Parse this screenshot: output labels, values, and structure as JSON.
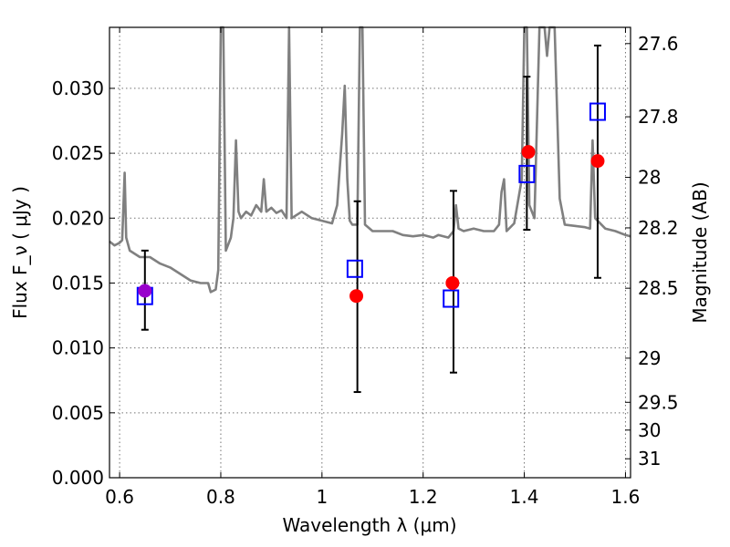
{
  "chart_data": {
    "type": "scatter",
    "xlabel": "Wavelength  λ (μm)",
    "ylabel": "Flux  F_ν  ( μJy )",
    "ylabel_right": "Magnitude (AB)",
    "xlim": [
      0.58,
      1.61
    ],
    "ylim": [
      0.0,
      0.0347
    ],
    "grid": true,
    "x_ticks": [
      0.6,
      0.8,
      1.0,
      1.2,
      1.4,
      1.6
    ],
    "x_tick_labels": [
      "0.6",
      "0.8",
      "1",
      "1.2",
      "1.4",
      "1.6"
    ],
    "y_ticks": [
      0.0,
      0.005,
      0.01,
      0.015,
      0.02,
      0.025,
      0.03
    ],
    "y_tick_labels": [
      "0.000",
      "0.005",
      "0.010",
      "0.015",
      "0.020",
      "0.025",
      "0.030"
    ],
    "right_ticks": [
      {
        "label": "27.6",
        "flux": 0.03345
      },
      {
        "label": "27.8",
        "flux": 0.02781
      },
      {
        "label": "28",
        "flux": 0.02314
      },
      {
        "label": "28.2",
        "flux": 0.01925
      },
      {
        "label": "28.5",
        "flux": 0.0146
      },
      {
        "label": "29",
        "flux": 0.00921
      },
      {
        "label": "29.5",
        "flux": 0.00581
      },
      {
        "label": "30",
        "flux": 0.00367
      },
      {
        "label": "31",
        "flux": 0.00146
      }
    ],
    "series": [
      {
        "kind": "line",
        "color": "#808080",
        "points": [
          [
            0.58,
            0.0182
          ],
          [
            0.59,
            0.0179
          ],
          [
            0.6,
            0.0181
          ],
          [
            0.605,
            0.0183
          ],
          [
            0.61,
            0.0235
          ],
          [
            0.613,
            0.0185
          ],
          [
            0.62,
            0.0175
          ],
          [
            0.64,
            0.017
          ],
          [
            0.66,
            0.017
          ],
          [
            0.68,
            0.0165
          ],
          [
            0.7,
            0.0162
          ],
          [
            0.72,
            0.0157
          ],
          [
            0.74,
            0.0152
          ],
          [
            0.76,
            0.015
          ],
          [
            0.775,
            0.015
          ],
          [
            0.78,
            0.0143
          ],
          [
            0.79,
            0.0145
          ],
          [
            0.795,
            0.016
          ],
          [
            0.8,
            0.0347
          ],
          [
            0.805,
            0.0347
          ],
          [
            0.81,
            0.0175
          ],
          [
            0.82,
            0.0185
          ],
          [
            0.825,
            0.02
          ],
          [
            0.83,
            0.026
          ],
          [
            0.835,
            0.0205
          ],
          [
            0.84,
            0.02
          ],
          [
            0.85,
            0.0205
          ],
          [
            0.86,
            0.0202
          ],
          [
            0.87,
            0.021
          ],
          [
            0.88,
            0.0205
          ],
          [
            0.885,
            0.023
          ],
          [
            0.89,
            0.0205
          ],
          [
            0.9,
            0.0208
          ],
          [
            0.91,
            0.0204
          ],
          [
            0.92,
            0.0206
          ],
          [
            0.93,
            0.02
          ],
          [
            0.935,
            0.0347
          ],
          [
            0.94,
            0.02
          ],
          [
            0.96,
            0.0205
          ],
          [
            0.98,
            0.02
          ],
          [
            1.0,
            0.0198
          ],
          [
            1.02,
            0.0196
          ],
          [
            1.03,
            0.021
          ],
          [
            1.04,
            0.0265
          ],
          [
            1.045,
            0.0302
          ],
          [
            1.05,
            0.023
          ],
          [
            1.055,
            0.0198
          ],
          [
            1.06,
            0.0195
          ],
          [
            1.07,
            0.0195
          ],
          [
            1.075,
            0.0347
          ],
          [
            1.08,
            0.0347
          ],
          [
            1.085,
            0.0195
          ],
          [
            1.1,
            0.019
          ],
          [
            1.12,
            0.019
          ],
          [
            1.14,
            0.019
          ],
          [
            1.16,
            0.0187
          ],
          [
            1.18,
            0.0186
          ],
          [
            1.2,
            0.0187
          ],
          [
            1.22,
            0.0185
          ],
          [
            1.23,
            0.0187
          ],
          [
            1.25,
            0.0185
          ],
          [
            1.26,
            0.019
          ],
          [
            1.265,
            0.021
          ],
          [
            1.27,
            0.0192
          ],
          [
            1.28,
            0.019
          ],
          [
            1.3,
            0.0192
          ],
          [
            1.32,
            0.019
          ],
          [
            1.34,
            0.019
          ],
          [
            1.35,
            0.0195
          ],
          [
            1.355,
            0.022
          ],
          [
            1.36,
            0.023
          ],
          [
            1.365,
            0.019
          ],
          [
            1.38,
            0.0196
          ],
          [
            1.395,
            0.023
          ],
          [
            1.4,
            0.0347
          ],
          [
            1.405,
            0.0347
          ],
          [
            1.41,
            0.021
          ],
          [
            1.42,
            0.02
          ],
          [
            1.43,
            0.0347
          ],
          [
            1.44,
            0.0347
          ],
          [
            1.445,
            0.0325
          ],
          [
            1.45,
            0.0347
          ],
          [
            1.46,
            0.0347
          ],
          [
            1.47,
            0.0215
          ],
          [
            1.48,
            0.0195
          ],
          [
            1.5,
            0.0194
          ],
          [
            1.52,
            0.0193
          ],
          [
            1.53,
            0.0192
          ],
          [
            1.535,
            0.026
          ],
          [
            1.54,
            0.02
          ],
          [
            1.56,
            0.0192
          ],
          [
            1.58,
            0.019
          ],
          [
            1.6,
            0.0187
          ],
          [
            1.61,
            0.0186
          ]
        ]
      },
      {
        "kind": "errorbar",
        "color": "#000000",
        "points": [
          {
            "x": 0.65,
            "low": 0.0114,
            "high": 0.0175
          },
          {
            "x": 1.07,
            "low": 0.0066,
            "high": 0.0213
          },
          {
            "x": 1.26,
            "low": 0.0081,
            "high": 0.0221
          },
          {
            "x": 1.405,
            "low": 0.0191,
            "high": 0.0309
          },
          {
            "x": 1.545,
            "low": 0.0154,
            "high": 0.0333
          }
        ]
      },
      {
        "kind": "square",
        "color": "#0000ff",
        "points": [
          [
            0.65,
            0.014
          ],
          [
            1.065,
            0.0161
          ],
          [
            1.255,
            0.0138
          ],
          [
            1.405,
            0.0234
          ],
          [
            1.545,
            0.0282
          ]
        ]
      },
      {
        "kind": "circle",
        "color": "#ff0000",
        "points": [
          [
            1.068,
            0.014
          ],
          [
            1.258,
            0.015
          ],
          [
            1.408,
            0.0251
          ],
          [
            1.545,
            0.0244
          ]
        ]
      },
      {
        "kind": "circle",
        "color": "#9900cc",
        "points": [
          [
            0.65,
            0.0144
          ]
        ]
      }
    ]
  }
}
